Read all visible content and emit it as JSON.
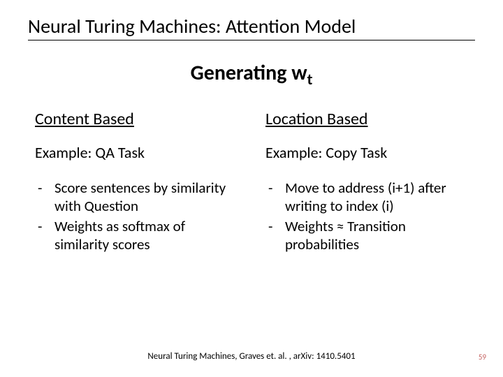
{
  "slide": {
    "title": "Neural Turing Machines: Attention Model",
    "subtitle_prefix": "Generating w",
    "subtitle_sub": "t",
    "left": {
      "heading": "Content Based",
      "example": "Example: QA Task",
      "bullets": [
        "Score sentences by similarity with Question",
        "Weights as softmax of similarity scores"
      ]
    },
    "right": {
      "heading": "Location Based",
      "example": "Example: Copy Task",
      "bullets": [
        "Move to address (i+1) after writing to index (i)",
        "Weights ≈ Transition probabilities"
      ]
    },
    "citation": "Neural Turing Machines, Graves et. al. , arXiv: 1410.5401",
    "page": "59"
  }
}
